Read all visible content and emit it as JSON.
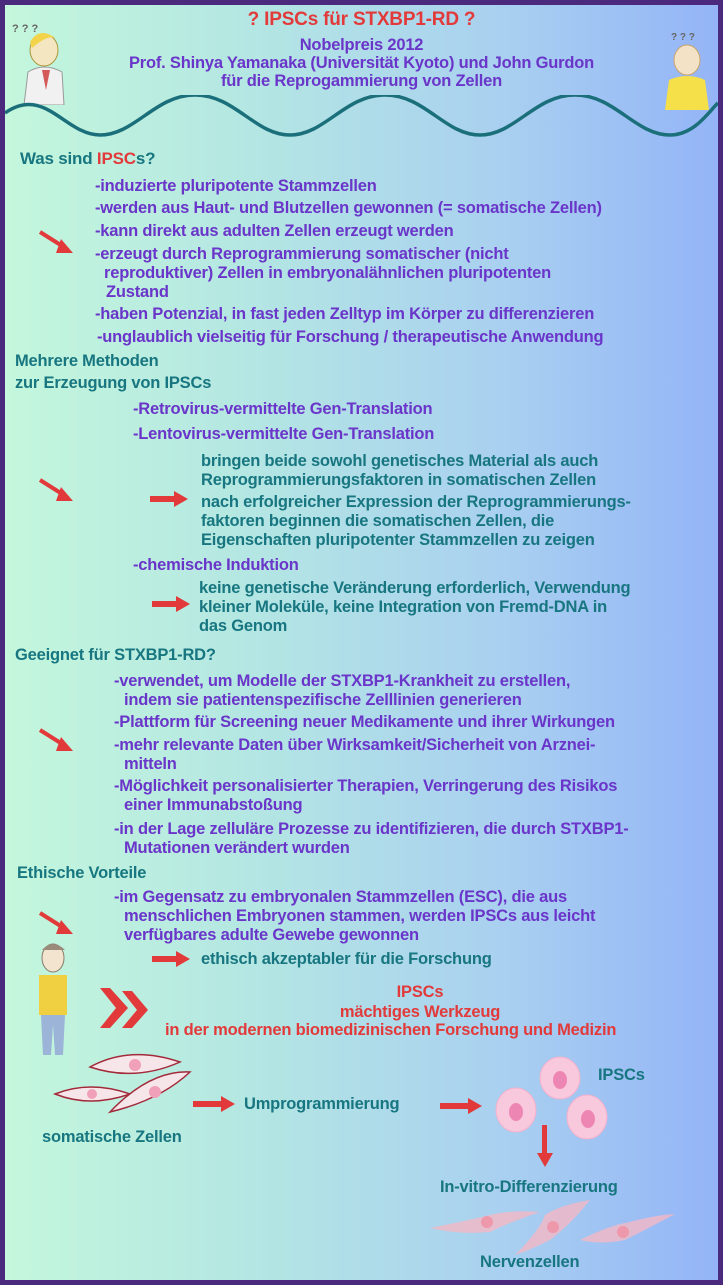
{
  "header": {
    "title": "? IPSCs für STXBP1-RD ?",
    "subtitle_lines": [
      "Nobelpreis 2012",
      "Prof. Shinya Yamanaka (Universität Kyoto) und John Gurdon",
      "für die Reprogammierung von Zellen"
    ]
  },
  "section1": {
    "heading_pre": "Was sind ",
    "heading_accent": "IPSC",
    "heading_post": "s?",
    "lines": [
      "-induzierte pluripotente Stammzellen",
      "-werden aus Haut- und Blutzellen gewonnen (= somatische Zellen)",
      "-kann direkt aus adulten Zellen erzeugt werden",
      "-erzeugt durch Reprogrammierung somatischer (nicht",
      "reproduktiver) Zellen in embryonalähnlichen pluripotenten",
      "Zustand",
      "-haben Potenzial, in fast jeden Zelltyp im Körper zu differenzieren",
      "-unglaublich vielseitig für Forschung / therapeutische Anwendung"
    ]
  },
  "section2": {
    "heading": [
      "Mehrere Methoden",
      "zur Erzeugung von IPSCs"
    ],
    "methods": [
      "-Retrovirus-vermittelte Gen-Translation",
      "-Lentovirus-vermittelte Gen-Translation"
    ],
    "viral_notes": [
      "bringen beide sowohl genetisches Material als auch",
      "Reprogrammierungsfaktoren in somatischen Zellen",
      "nach erfolgreicher Expression der Reprogrammierungs-",
      "faktoren beginnen die somatischen Zellen, die",
      "Eigenschaften pluripotenter Stammzellen zu zeigen"
    ],
    "chemical": "-chemische Induktion",
    "chemical_notes": [
      "keine genetische Veränderung erforderlich, Verwendung",
      "kleiner Moleküle, keine Integration von Fremd-DNA in",
      "das Genom"
    ]
  },
  "section3": {
    "heading": "Geeignet für STXBP1-RD?",
    "lines": [
      "-verwendet, um Modelle der STXBP1-Krankheit zu erstellen,",
      "indem sie  patientenspezifische Zelllinien generieren",
      "-Plattform für Screening neuer Medikamente und ihrer Wirkungen",
      "-mehr relevante Daten über Wirksamkeit/Sicherheit von Arznei-",
      "mitteln",
      "-Möglichkeit personalisierter Therapien, Verringerung des Risikos",
      "einer Immunabstoßung",
      "-in der Lage zelluläre Prozesse zu identifizieren, die durch STXBP1-",
      "Mutationen verändert wurden"
    ]
  },
  "section4": {
    "heading": "Ethische Vorteile",
    "lines": [
      "-im Gegensatz zu embryonalen Stammzellen (ESC), die aus",
      "menschlichen Embryonen stammen, werden IPSCs aus leicht",
      "verfügbares adulte Gewebe gewonnen"
    ],
    "conclusion": "ethisch akzeptabler für die Forschung"
  },
  "callout": [
    "IPSCs",
    "mächtiges Werkzeug",
    "in der modernen biomedizinischen Forschung und Medizin"
  ],
  "diagram": {
    "somatic": "somatische Zellen",
    "reprogramming": "Umprogrammierung",
    "ipscs": "IPSCs",
    "differentiation": "In-vitro-Differenzierung",
    "neurons": "Nervenzellen"
  },
  "colors": {
    "border": "#4b2a7e",
    "text_purple": "#6a35c9",
    "text_teal": "#177680",
    "accent_red": "#e23a3a",
    "cell_pink": "#f7c6dc"
  }
}
